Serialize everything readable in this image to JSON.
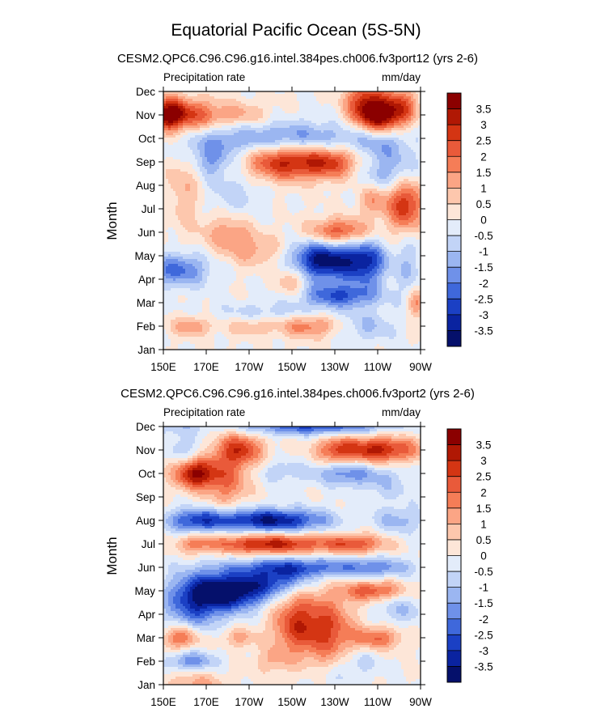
{
  "title": "Equatorial Pacific Ocean (5S-5N)",
  "colorbar": {
    "labels": [
      "3.5",
      "3",
      "2.5",
      "2",
      "1.5",
      "1",
      "0.5",
      "0",
      "-0.5",
      "-1",
      "-1.5",
      "-2",
      "-2.5",
      "-3",
      "-3.5"
    ],
    "levels": [
      3.5,
      3,
      2.5,
      2,
      1.5,
      1,
      0.5,
      0,
      -0.5,
      -1,
      -1.5,
      -2,
      -2.5,
      -3,
      -3.5
    ],
    "colors": [
      "#8b0000",
      "#b01804",
      "#d43513",
      "#e95a3a",
      "#f57d57",
      "#fba585",
      "#fdc7ad",
      "#fde6d8",
      "#e3ecfa",
      "#c2d4f7",
      "#9bb6f1",
      "#6f91e9",
      "#3f68db",
      "#1b40c4",
      "#0a23a0",
      "#05106b"
    ]
  },
  "chart_data": [
    {
      "type": "heatmap",
      "subtitle": "CESM2.QPC6.C96.C96.g16.intel.384pes.ch006.fv3port12 (yrs 2-6)",
      "left_label": "Precipitation rate",
      "right_label": "mm/day",
      "ylabel": "Month",
      "x_ticks": [
        "150E",
        "170E",
        "170W",
        "150W",
        "130W",
        "110W",
        "90W"
      ],
      "x_tick_values": [
        150,
        170,
        190,
        210,
        230,
        250,
        270
      ],
      "y_ticks": [
        "Jan",
        "Feb",
        "Mar",
        "Apr",
        "May",
        "Jun",
        "Jul",
        "Aug",
        "Sep",
        "Oct",
        "Nov",
        "Dec"
      ],
      "xlim": [
        150,
        270
      ],
      "ylim": [
        1,
        12
      ],
      "features": [
        {
          "lon": 152,
          "month": 11,
          "amp": 3.8,
          "dlon": 6,
          "dm": 0.5
        },
        {
          "lon": 165,
          "month": 11,
          "amp": 2.0,
          "dlon": 8,
          "dm": 0.5
        },
        {
          "lon": 185,
          "month": 11,
          "amp": 1.2,
          "dlon": 10,
          "dm": 0.4
        },
        {
          "lon": 243,
          "month": 11.4,
          "amp": 2.6,
          "dlon": 6,
          "dm": 0.8
        },
        {
          "lon": 252,
          "month": 11,
          "amp": 3.8,
          "dlon": 6,
          "dm": 0.6
        },
        {
          "lon": 262,
          "month": 11.3,
          "amp": 2.0,
          "dlon": 5,
          "dm": 0.6
        },
        {
          "lon": 210,
          "month": 10,
          "amp": -1.8,
          "dlon": 22,
          "dm": 0.5
        },
        {
          "lon": 250,
          "month": 10,
          "amp": -1.5,
          "dlon": 10,
          "dm": 0.5
        },
        {
          "lon": 170,
          "month": 9.8,
          "amp": -1.0,
          "dlon": 15,
          "dm": 0.6
        },
        {
          "lon": 205,
          "month": 9,
          "amp": 3.0,
          "dlon": 12,
          "dm": 0.55
        },
        {
          "lon": 228,
          "month": 9,
          "amp": 2.6,
          "dlon": 10,
          "dm": 0.5
        },
        {
          "lon": 172,
          "month": 9,
          "amp": -1.2,
          "dlon": 6,
          "dm": 0.5
        },
        {
          "lon": 255,
          "month": 8.6,
          "amp": -1.5,
          "dlon": 10,
          "dm": 0.7
        },
        {
          "lon": 263,
          "month": 7.2,
          "amp": 3.0,
          "dlon": 6,
          "dm": 0.8
        },
        {
          "lon": 248,
          "month": 7.4,
          "amp": 1.5,
          "dlon": 5,
          "dm": 0.5
        },
        {
          "lon": 160,
          "month": 8,
          "amp": 1.0,
          "dlon": 6,
          "dm": 1.3
        },
        {
          "lon": 183,
          "month": 7.6,
          "amp": -0.8,
          "dlon": 10,
          "dm": 0.8
        },
        {
          "lon": 232,
          "month": 6,
          "amp": 2.6,
          "dlon": 10,
          "dm": 0.4
        },
        {
          "lon": 180,
          "month": 6,
          "amp": 1.4,
          "dlon": 8,
          "dm": 0.6
        },
        {
          "lon": 195,
          "month": 5.2,
          "amp": 1.2,
          "dlon": 10,
          "dm": 0.5
        },
        {
          "lon": 225,
          "month": 4.8,
          "amp": -3.8,
          "dlon": 12,
          "dm": 0.6
        },
        {
          "lon": 245,
          "month": 4.7,
          "amp": -2.4,
          "dlon": 7,
          "dm": 0.7
        },
        {
          "lon": 232,
          "month": 3.3,
          "amp": -2.4,
          "dlon": 13,
          "dm": 0.35
        },
        {
          "lon": 157,
          "month": 4.4,
          "amp": -2.2,
          "dlon": 10,
          "dm": 0.5
        },
        {
          "lon": 210,
          "month": 4,
          "amp": 1.5,
          "dlon": 5,
          "dm": 0.5
        },
        {
          "lon": 163,
          "month": 2,
          "amp": 1.6,
          "dlon": 6,
          "dm": 0.3
        },
        {
          "lon": 218,
          "month": 2,
          "amp": 1.8,
          "dlon": 10,
          "dm": 0.35
        },
        {
          "lon": 190,
          "month": 2,
          "amp": 0.9,
          "dlon": 8,
          "dm": 0.3
        },
        {
          "lon": 200,
          "month": 2.6,
          "amp": -0.8,
          "dlon": 20,
          "dm": 0.3
        },
        {
          "lon": 245,
          "month": 2,
          "amp": -1.0,
          "dlon": 10,
          "dm": 0.5
        },
        {
          "lon": 268,
          "month": 3,
          "amp": 1.6,
          "dlon": 3,
          "dm": 0.5
        },
        {
          "lon": 265,
          "month": 4.5,
          "amp": -1.0,
          "dlon": 4,
          "dm": 1.0
        }
      ]
    },
    {
      "type": "heatmap",
      "subtitle": "CESM2.QPC6.C96.C96.g16.intel.384pes.ch006.fv3port2 (yrs 2-6)",
      "left_label": "Precipitation rate",
      "right_label": "mm/day",
      "ylabel": "Month",
      "x_ticks": [
        "150E",
        "170E",
        "170W",
        "150W",
        "130W",
        "110W",
        "90W"
      ],
      "x_tick_values": [
        150,
        170,
        190,
        210,
        230,
        250,
        270
      ],
      "y_ticks": [
        "Jan",
        "Feb",
        "Mar",
        "Apr",
        "May",
        "Jun",
        "Jul",
        "Aug",
        "Sep",
        "Oct",
        "Nov",
        "Dec"
      ],
      "xlim": [
        150,
        270
      ],
      "ylim": [
        1,
        12
      ],
      "features": [
        {
          "lon": 220,
          "month": 12,
          "amp": -2.5,
          "dlon": 25,
          "dm": 0.25
        },
        {
          "lon": 155,
          "month": 12,
          "amp": -0.8,
          "dlon": 8,
          "dm": 0.3
        },
        {
          "lon": 185,
          "month": 11,
          "amp": 2.8,
          "dlon": 8,
          "dm": 0.5
        },
        {
          "lon": 250,
          "month": 11,
          "amp": 3.2,
          "dlon": 14,
          "dm": 0.4
        },
        {
          "lon": 230,
          "month": 11,
          "amp": 1.5,
          "dlon": 6,
          "dm": 0.4
        },
        {
          "lon": 160,
          "month": 11,
          "amp": -1.0,
          "dlon": 6,
          "dm": 0.4
        },
        {
          "lon": 165,
          "month": 10,
          "amp": 3.6,
          "dlon": 7,
          "dm": 0.45
        },
        {
          "lon": 180,
          "month": 9.6,
          "amp": 1.8,
          "dlon": 7,
          "dm": 0.7
        },
        {
          "lon": 235,
          "month": 10,
          "amp": -1.8,
          "dlon": 10,
          "dm": 0.35
        },
        {
          "lon": 205,
          "month": 10.1,
          "amp": -0.9,
          "dlon": 8,
          "dm": 0.35
        },
        {
          "lon": 255,
          "month": 9.6,
          "amp": -0.8,
          "dlon": 10,
          "dm": 0.6
        },
        {
          "lon": 200,
          "month": 8,
          "amp": -3.6,
          "dlon": 18,
          "dm": 0.35
        },
        {
          "lon": 165,
          "month": 8,
          "amp": -2.4,
          "dlon": 10,
          "dm": 0.35
        },
        {
          "lon": 260,
          "month": 8,
          "amp": -1.2,
          "dlon": 8,
          "dm": 0.4
        },
        {
          "lon": 200,
          "month": 7,
          "amp": 3.2,
          "dlon": 20,
          "dm": 0.3
        },
        {
          "lon": 240,
          "month": 7,
          "amp": 2.0,
          "dlon": 10,
          "dm": 0.3
        },
        {
          "lon": 165,
          "month": 7,
          "amp": 1.2,
          "dlon": 6,
          "dm": 0.3
        },
        {
          "lon": 212,
          "month": 6,
          "amp": -2.5,
          "dlon": 20,
          "dm": 0.3
        },
        {
          "lon": 250,
          "month": 6,
          "amp": -1.5,
          "dlon": 12,
          "dm": 0.3
        },
        {
          "lon": 183,
          "month": 5,
          "amp": -3.8,
          "dlon": 12,
          "dm": 0.55
        },
        {
          "lon": 165,
          "month": 4.6,
          "amp": -2.8,
          "dlon": 10,
          "dm": 0.8
        },
        {
          "lon": 205,
          "month": 5.4,
          "amp": -2.0,
          "dlon": 10,
          "dm": 0.4
        },
        {
          "lon": 248,
          "month": 5,
          "amp": 2.4,
          "dlon": 10,
          "dm": 0.3
        },
        {
          "lon": 260,
          "month": 4.2,
          "amp": -1.0,
          "dlon": 8,
          "dm": 0.5
        },
        {
          "lon": 212,
          "month": 3.6,
          "amp": 2.6,
          "dlon": 8,
          "dm": 1.0
        },
        {
          "lon": 228,
          "month": 3.3,
          "amp": 2.2,
          "dlon": 8,
          "dm": 1.1
        },
        {
          "lon": 250,
          "month": 3,
          "amp": 2.0,
          "dlon": 8,
          "dm": 0.35
        },
        {
          "lon": 158,
          "month": 3,
          "amp": 2.2,
          "dlon": 6,
          "dm": 0.35
        },
        {
          "lon": 185,
          "month": 3,
          "amp": 1.2,
          "dlon": 6,
          "dm": 0.3
        },
        {
          "lon": 163,
          "month": 2,
          "amp": -1.8,
          "dlon": 8,
          "dm": 0.3
        },
        {
          "lon": 200,
          "month": 2,
          "amp": 0.8,
          "dlon": 6,
          "dm": 0.4
        },
        {
          "lon": 240,
          "month": 2,
          "amp": -0.8,
          "dlon": 8,
          "dm": 0.4
        },
        {
          "lon": 165,
          "month": 1,
          "amp": 1.2,
          "dlon": 10,
          "dm": 0.4
        },
        {
          "lon": 230,
          "month": 1.3,
          "amp": -0.6,
          "dlon": 10,
          "dm": 0.4
        }
      ]
    }
  ]
}
